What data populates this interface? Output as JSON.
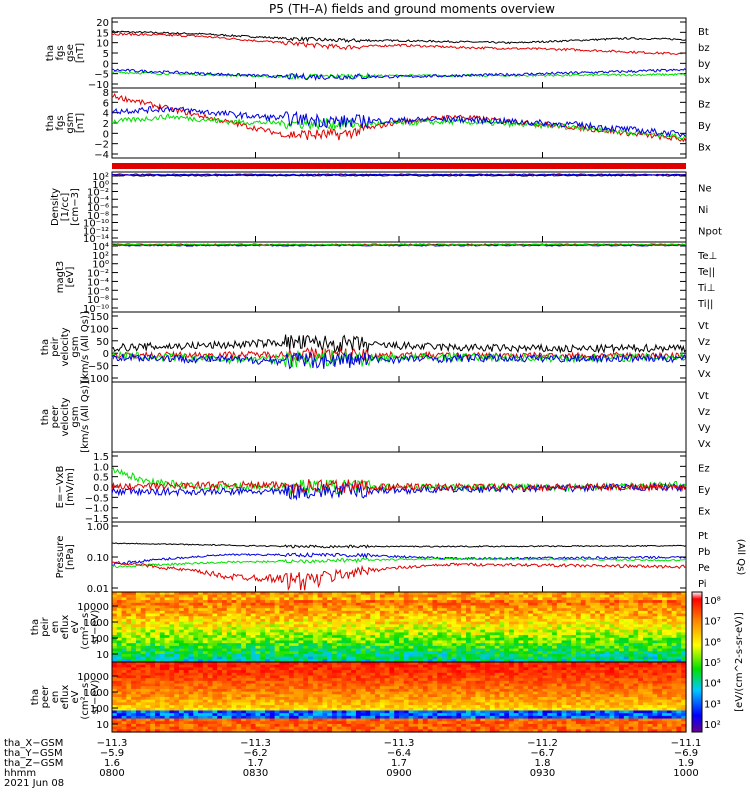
{
  "title": "P5 (TH–A) fields and ground moments overview",
  "colors": {
    "black": "#000000",
    "red": "#e00000",
    "green": "#00e000",
    "blue": "#0000e0"
  },
  "chart_data": [
    {
      "type": "line",
      "ylabel": [
        "tha",
        "fgs",
        "gse",
        "[nT]"
      ],
      "yticks": [
        "20",
        "15",
        "10",
        "5",
        "0",
        "−5",
        "−10"
      ],
      "ylim": [
        -10,
        21
      ],
      "legend": [
        {
          "name": "Bt",
          "color": "black"
        },
        {
          "name": "bz",
          "color": "red"
        },
        {
          "name": "by",
          "color": "green"
        },
        {
          "name": "bx",
          "color": "blue"
        }
      ],
      "series": [
        {
          "name": "Bt",
          "color": "black",
          "x": [
            0,
            0.15,
            0.3,
            0.4,
            0.5,
            0.6,
            0.7,
            0.8,
            0.9,
            1
          ],
          "y": [
            15,
            14,
            12,
            11,
            11,
            10.5,
            10,
            11,
            12,
            11.5
          ],
          "noise": 0.4
        },
        {
          "name": "bz",
          "color": "red",
          "x": [
            0,
            0.15,
            0.3,
            0.4,
            0.5,
            0.6,
            0.7,
            0.8,
            0.9,
            1
          ],
          "y": [
            14,
            13,
            10,
            8,
            9,
            8,
            7.5,
            7,
            6,
            5
          ],
          "noise": 0.5
        },
        {
          "name": "by",
          "color": "green",
          "x": [
            0,
            0.3,
            0.5,
            0.7,
            1
          ],
          "y": [
            -3,
            -5,
            -4.5,
            -4.5,
            -4
          ],
          "noise": 0.5
        },
        {
          "name": "bx",
          "color": "blue",
          "x": [
            0,
            0.3,
            0.5,
            0.7,
            1
          ],
          "y": [
            -2,
            -5,
            -5,
            -4,
            -2
          ],
          "noise": 0.6
        }
      ]
    },
    {
      "type": "line",
      "ylabel": [
        "tha",
        "fgs",
        "gsm",
        "[nT]"
      ],
      "yticks": [
        "8",
        "6",
        "4",
        "2",
        "0",
        "−2",
        "−4"
      ],
      "ylim": [
        -5,
        8.5
      ],
      "legend": [
        {
          "name": "Bz",
          "color": "red"
        },
        {
          "name": "By",
          "color": "green"
        },
        {
          "name": "Bx",
          "color": "blue"
        }
      ],
      "series": [
        {
          "name": "Bz",
          "color": "red",
          "x": [
            0,
            0.08,
            0.2,
            0.3,
            0.4,
            0.5,
            0.6,
            0.8,
            1
          ],
          "y": [
            7,
            5,
            2,
            -0.5,
            -0.5,
            2,
            3,
            1,
            -1.5
          ],
          "noise": 0.5
        },
        {
          "name": "By",
          "color": "green",
          "x": [
            0,
            0.1,
            0.2,
            0.4,
            0.6,
            0.8,
            1
          ],
          "y": [
            2,
            3,
            2,
            1.5,
            2,
            1,
            -1
          ],
          "noise": 0.5
        },
        {
          "name": "Bx",
          "color": "blue",
          "x": [
            0,
            0.1,
            0.25,
            0.4,
            0.6,
            0.8,
            1
          ],
          "y": [
            4,
            4.5,
            3,
            2,
            2.5,
            1.5,
            -0.5
          ],
          "noise": 0.6
        }
      ]
    },
    {
      "type": "line",
      "ylabel": [
        "Density",
        "[1/cc]",
        "[cm−3]"
      ],
      "yticks": [
        "10²",
        "10⁰",
        "10⁻²",
        "10⁻⁴",
        "10⁻⁶",
        "10⁻⁸",
        "10⁻¹⁰",
        "10⁻¹²",
        "10⁻¹⁴"
      ],
      "legend": [
        {
          "name": "Ne",
          "color": "red"
        },
        {
          "name": "Ni",
          "color": "black"
        },
        {
          "name": "Npot",
          "color": "blue"
        }
      ]
    },
    {
      "type": "line",
      "ylabel": [
        "magt3",
        "[eV]"
      ],
      "yticks": [
        "10⁴",
        "10²",
        "10⁰",
        "10⁻²",
        "10⁻⁴",
        "10⁻⁶",
        "10⁻⁸",
        "10⁻¹⁰"
      ],
      "legend": [
        {
          "name": "Te⊥",
          "color": "red"
        },
        {
          "name": "Te||",
          "color": "black"
        },
        {
          "name": "Ti⊥",
          "color": "blue"
        },
        {
          "name": "Ti||",
          "color": "green"
        }
      ]
    },
    {
      "type": "line",
      "ylabel": [
        "tha",
        "peir",
        "velocity",
        "gsm",
        "[km/s (All Qs)]"
      ],
      "yticks": [
        "150",
        "100",
        "50",
        "0",
        "−50",
        "−100"
      ],
      "ylim": [
        -100,
        165
      ],
      "legend": [
        {
          "name": "Vt",
          "color": "black"
        },
        {
          "name": "Vz",
          "color": "red"
        },
        {
          "name": "Vy",
          "color": "green"
        },
        {
          "name": "Vx",
          "color": "blue"
        }
      ],
      "series": [
        {
          "name": "Vt",
          "color": "black",
          "x": [
            0,
            0.2,
            0.3,
            0.45,
            0.6,
            0.8,
            1
          ],
          "y": [
            30,
            40,
            50,
            40,
            30,
            25,
            30
          ],
          "noise": 15
        },
        {
          "name": "Vz",
          "color": "red",
          "x": [
            0,
            0.3,
            0.6,
            1
          ],
          "y": [
            0,
            5,
            0,
            0
          ],
          "noise": 12
        },
        {
          "name": "Vy",
          "color": "green",
          "x": [
            0,
            0.2,
            0.4,
            0.6,
            0.8,
            1
          ],
          "y": [
            0,
            -15,
            -10,
            -5,
            -10,
            -5
          ],
          "noise": 15
        },
        {
          "name": "Vx",
          "color": "blue",
          "x": [
            0,
            0.3,
            0.6,
            1
          ],
          "y": [
            -5,
            -20,
            -10,
            -10
          ],
          "noise": 15
        }
      ]
    },
    {
      "type": "line",
      "ylabel": [
        "tha",
        "peer",
        "velocity",
        "gsm",
        "[km/s (All Qs)]"
      ],
      "yticks": [],
      "legend": [
        {
          "name": "Vt",
          "color": "black"
        },
        {
          "name": "Vz",
          "color": "red"
        },
        {
          "name": "Vy",
          "color": "green"
        },
        {
          "name": "Vx",
          "color": "blue"
        }
      ],
      "series": []
    },
    {
      "type": "line",
      "ylabel": [
        "E=−VxB",
        "[mV/m]"
      ],
      "yticks": [
        "1.5",
        "1.0",
        "0.5",
        "0.0",
        "−0.5",
        "−1.0",
        "−1.5"
      ],
      "ylim": [
        -1.5,
        1.5
      ],
      "legend": [
        {
          "name": "Ez",
          "color": "red"
        },
        {
          "name": "Ey",
          "color": "green"
        },
        {
          "name": "Ex",
          "color": "blue"
        }
      ],
      "series": [
        {
          "name": "Ey",
          "color": "green",
          "x": [
            0,
            0.05,
            0.15,
            0.3,
            0.6,
            0.8,
            1
          ],
          "y": [
            0.8,
            0.3,
            0,
            0,
            0,
            0,
            0.1
          ],
          "noise": 0.15
        },
        {
          "name": "Ex",
          "color": "blue",
          "x": [
            0,
            0.3,
            0.6,
            1
          ],
          "y": [
            -0.2,
            -0.2,
            -0.1,
            0
          ],
          "noise": 0.15
        },
        {
          "name": "Ez",
          "color": "red",
          "x": [
            0,
            0.2,
            0.5,
            0.8,
            1
          ],
          "y": [
            0,
            0.1,
            0,
            0,
            0
          ],
          "noise": 0.15
        }
      ]
    },
    {
      "type": "line",
      "scale": "log",
      "ylabel": [
        "Pressure",
        "[nPa]"
      ],
      "yticks": [
        "1.00",
        "0.10",
        "0.01"
      ],
      "ylim": [
        0.008,
        1.3
      ],
      "legend": [
        {
          "name": "Pt",
          "color": "black"
        },
        {
          "name": "Pb",
          "color": "red"
        },
        {
          "name": "Pe",
          "color": "green"
        },
        {
          "name": "Pi",
          "color": "blue"
        }
      ],
      "side_label": "(All Qs)",
      "series": [
        {
          "name": "Pt",
          "color": "black",
          "x": [
            0,
            0.3,
            0.6,
            1
          ],
          "y": [
            0.28,
            0.22,
            0.22,
            0.23
          ],
          "noise": 0.01
        },
        {
          "name": "Pi",
          "color": "blue",
          "x": [
            0,
            0.2,
            0.4,
            0.6,
            1
          ],
          "y": [
            0.06,
            0.12,
            0.12,
            0.09,
            0.1
          ],
          "noise": 0.008
        },
        {
          "name": "Pe",
          "color": "green",
          "x": [
            0,
            0.2,
            0.4,
            0.6,
            1
          ],
          "y": [
            0.05,
            0.07,
            0.08,
            0.09,
            0.08
          ],
          "noise": 0.005
        },
        {
          "name": "Pb",
          "color": "red",
          "x": [
            0,
            0.1,
            0.2,
            0.35,
            0.45,
            0.6,
            1
          ],
          "y": [
            0.07,
            0.045,
            0.025,
            0.02,
            0.04,
            0.06,
            0.05
          ],
          "noise": 0.006
        }
      ]
    },
    {
      "type": "heatmap",
      "ylabel": [
        "tha",
        "peir",
        "en",
        "eflux",
        "eV",
        "(cm²−s−",
        "sr−eV)"
      ],
      "yticks": [
        "10000",
        "1000",
        "100",
        "10"
      ]
    },
    {
      "type": "heatmap",
      "ylabel": [
        "tha",
        "peer",
        "en",
        "eflux",
        "eV",
        "(cm²−s−",
        "sr−eV)"
      ],
      "yticks": [
        "10000",
        "1000",
        "100",
        "10"
      ]
    }
  ],
  "colorbar": {
    "ticks": [
      "10⁸",
      "10⁷",
      "10⁶",
      "10⁵",
      "10⁴",
      "10³",
      "10²"
    ],
    "label": "[eV/(cm^2-s-sr-eV)]"
  },
  "xaxis": {
    "row_labels": [
      "tha_X−GSM",
      "tha_Y−GSM",
      "tha_Z−GSM",
      "hhmm",
      "2021 Jun 08"
    ],
    "columns": [
      {
        "x": "−11.3",
        "y": "−5.9",
        "z": "1.6",
        "t": "0800"
      },
      {
        "x": "−11.3",
        "y": "−6.2",
        "z": "1.7",
        "t": "0830"
      },
      {
        "x": "−11.3",
        "y": "−6.4",
        "z": "1.7",
        "t": "0900"
      },
      {
        "x": "−11.2",
        "y": "−6.7",
        "z": "1.8",
        "t": "0930"
      },
      {
        "x": "−11.1",
        "y": "−6.9",
        "z": "1.9",
        "t": "1000"
      }
    ]
  }
}
